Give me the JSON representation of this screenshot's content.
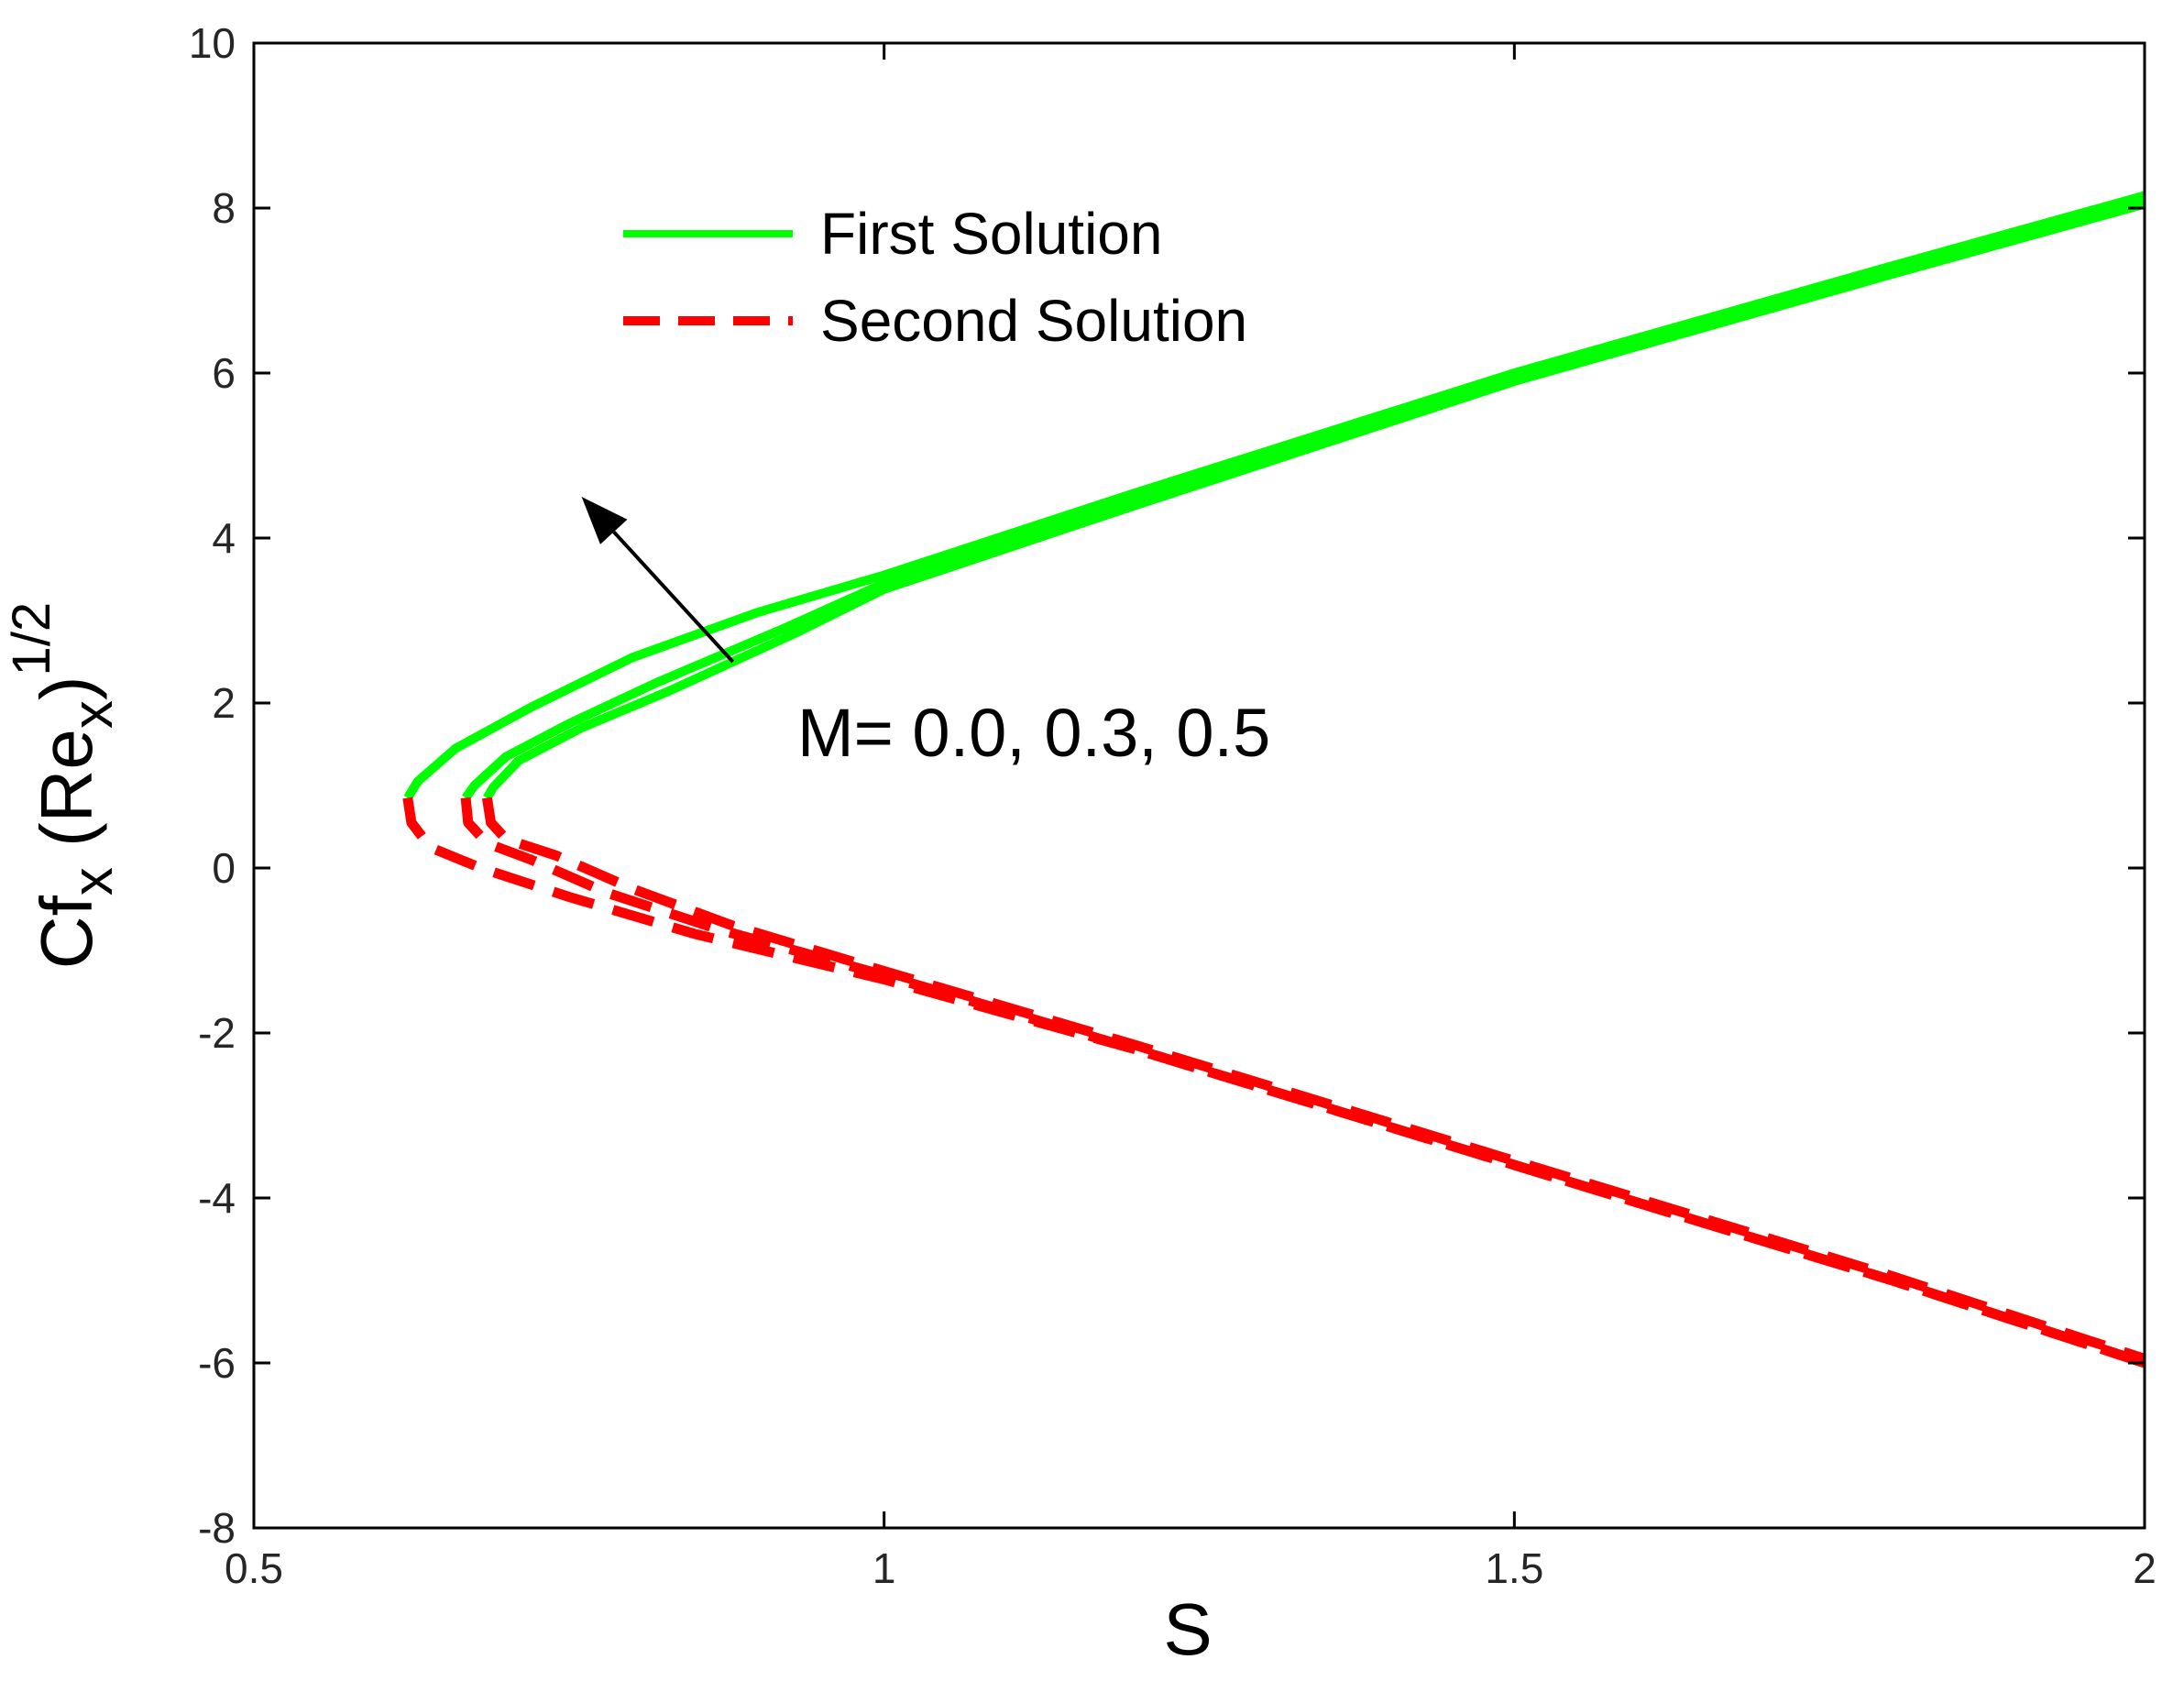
{
  "chart_data": {
    "type": "line",
    "title": "",
    "xlabel": "S",
    "ylabel": {
      "base": "Cf",
      "sub1": "x",
      "mid": " (Re",
      "sub2": "x",
      "close": ")",
      "sup": "1/2"
    },
    "xlim": [
      0.5,
      2
    ],
    "ylim": [
      -8,
      10
    ],
    "xticks": [
      0.5,
      1,
      1.5,
      2
    ],
    "xtick_labels": [
      "0.5",
      "1",
      "1.5",
      "2"
    ],
    "yticks": [
      -8,
      -6,
      -4,
      -2,
      0,
      2,
      4,
      6,
      8,
      10
    ],
    "ytick_labels": [
      "-8",
      "-6",
      "-4",
      "-2",
      "0",
      "2",
      "4",
      "6",
      "8",
      "10"
    ],
    "grid": false,
    "legend": {
      "placement": "upper-left",
      "entries": [
        {
          "label": "First Solution",
          "color": "#00ff00",
          "style": "solid"
        },
        {
          "label": "Second Solution",
          "color": "#ff0000",
          "style": "dashed"
        }
      ]
    },
    "annotation": {
      "text": "M= 0.0, 0.3, 0.5",
      "arrow_from": [
        0.88,
        2.5
      ],
      "arrow_to": [
        0.76,
        4.5
      ]
    },
    "series": [
      {
        "legend_entry": "First Solution",
        "param": "M = 0.0",
        "color": "#00ff00",
        "style": "solid",
        "x": [
          0.622,
          0.63,
          0.66,
          0.72,
          0.8,
          0.9,
          1.0,
          1.2,
          1.5,
          1.8,
          2.0
        ],
        "y": [
          0.85,
          1.05,
          1.45,
          1.95,
          2.55,
          3.1,
          3.55,
          4.55,
          6.0,
          7.3,
          8.15
        ]
      },
      {
        "legend_entry": "First Solution",
        "param": "M = 0.3",
        "color": "#00ff00",
        "style": "solid",
        "x": [
          0.668,
          0.675,
          0.7,
          0.75,
          0.82,
          0.92,
          1.0,
          1.2,
          1.5,
          1.8,
          2.0
        ],
        "y": [
          0.85,
          1.0,
          1.35,
          1.75,
          2.25,
          2.9,
          3.45,
          4.45,
          5.95,
          7.25,
          8.1
        ]
      },
      {
        "legend_entry": "First Solution",
        "param": "M = 0.5",
        "color": "#00ff00",
        "style": "solid",
        "x": [
          0.685,
          0.69,
          0.71,
          0.76,
          0.83,
          0.93,
          1.0,
          1.2,
          1.5,
          1.8,
          2.0
        ],
        "y": [
          0.85,
          0.98,
          1.3,
          1.7,
          2.15,
          2.85,
          3.38,
          4.4,
          5.9,
          7.2,
          8.05
        ]
      },
      {
        "legend_entry": "Second Solution",
        "param": "M = 0.0",
        "color": "#ff0000",
        "style": "dashed",
        "x": [
          0.622,
          0.625,
          0.64,
          0.68,
          0.75,
          0.85,
          1.0,
          1.2,
          1.5,
          1.8,
          2.0
        ],
        "y": [
          0.85,
          0.55,
          0.25,
          0.0,
          -0.35,
          -0.8,
          -1.35,
          -2.2,
          -3.6,
          -5.0,
          -6.0
        ]
      },
      {
        "legend_entry": "Second Solution",
        "param": "M = 0.3",
        "color": "#ff0000",
        "style": "dashed",
        "x": [
          0.668,
          0.67,
          0.685,
          0.72,
          0.78,
          0.87,
          1.0,
          1.2,
          1.5,
          1.8,
          2.0
        ],
        "y": [
          0.85,
          0.55,
          0.3,
          0.1,
          -0.3,
          -0.75,
          -1.3,
          -2.2,
          -3.6,
          -5.0,
          -6.0
        ]
      },
      {
        "legend_entry": "Second Solution",
        "param": "M = 0.5",
        "color": "#ff0000",
        "style": "dashed",
        "x": [
          0.685,
          0.688,
          0.7,
          0.74,
          0.8,
          0.88,
          1.0,
          1.2,
          1.5,
          1.8,
          2.0
        ],
        "y": [
          0.85,
          0.55,
          0.35,
          0.15,
          -0.25,
          -0.7,
          -1.25,
          -2.15,
          -3.55,
          -4.95,
          -5.95
        ]
      }
    ]
  }
}
